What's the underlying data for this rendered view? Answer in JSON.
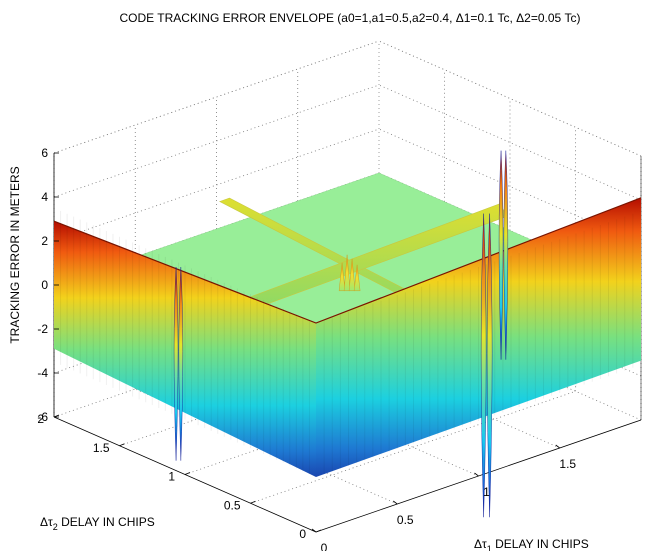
{
  "chart_data": {
    "type": "surface",
    "title": "CODE TRACKING ERROR ENVELOPE (a0=1,a1=0.5,a2=0.4, Δ1=0.1 Tc, Δ2=0.05 Tc)",
    "xlabel": {
      "prefix": "Δτ",
      "sub": "1",
      "suffix": " DELAY IN CHIPS"
    },
    "ylabel": {
      "prefix": "Δτ",
      "sub": "2",
      "suffix": " DELAY IN CHIPS"
    },
    "zlabel": "TRACKING ERROR IN METERS",
    "x_ticks": [
      "0",
      "0.5",
      "1",
      "1.5"
    ],
    "y_ticks": [
      "0",
      "0.5",
      "1",
      "1.5",
      "2"
    ],
    "z_ticks": [
      "6",
      "4",
      "2",
      "0",
      "-2",
      "-4",
      "-6"
    ],
    "xlim": [
      0,
      2
    ],
    "ylim": [
      0,
      2
    ],
    "zlim": [
      -6,
      6
    ],
    "grid": true,
    "colormap": "jet",
    "features": {
      "plateau_z": 0,
      "plateau_color": "#98ee98",
      "wall_amplitude_m": 3.5,
      "ridge_tau": 1.05,
      "spike_positions": [
        [
          0.0,
          1.05
        ],
        [
          1.05,
          0.0
        ],
        [
          1.05,
          1.05
        ],
        [
          2.0,
          1.05
        ],
        [
          1.05,
          2.0
        ]
      ]
    }
  }
}
